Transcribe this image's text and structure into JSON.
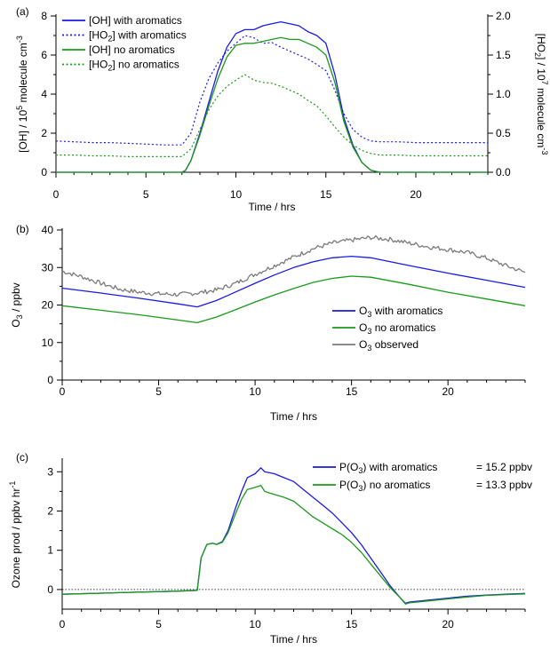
{
  "chart_data": [
    {
      "type": "line",
      "panel_label": "(a)",
      "xlabel": "Time / hrs",
      "xlim": [
        0,
        24
      ],
      "xticks": [
        "0",
        "5",
        "10",
        "15",
        "20"
      ],
      "ylabel_prefix": "[OH] / 10",
      "ylabel_exp": "5",
      "ylabel_suffix": " molecule cm",
      "ylabel_unit_exp": "-3",
      "ylim": [
        0,
        8
      ],
      "yticks": [
        "0",
        "2",
        "4",
        "6",
        "8"
      ],
      "y2label_prefix": "[HO",
      "y2label_sub": "2",
      "y2label_mid": "] / 10",
      "y2label_exp": "7",
      "y2label_suffix": " molecule cm",
      "y2label_unit_exp": "-3",
      "y2lim": [
        0,
        2.0
      ],
      "y2ticks": [
        "0.0",
        "0.5",
        "1.0",
        "1.5",
        "2.0"
      ],
      "legend_position": "top-left",
      "legend": [
        "[OH] with aromatics",
        "[HO2] with aromatics",
        "[OH] no aromatics",
        "[HO2] no aromatics"
      ],
      "legend_parts": [
        {
          "a": "[OH] with aromatics",
          "sub": "",
          "b": ""
        },
        {
          "a": "[HO",
          "sub": "2",
          "b": "] with aromatics"
        },
        {
          "a": "[OH] no aromatics",
          "sub": "",
          "b": ""
        },
        {
          "a": "[HO",
          "sub": "2",
          "b": "] no aromatics"
        }
      ],
      "series": [
        {
          "name": "[OH] with aromatics",
          "axis": "left",
          "color": "#1a1ae6",
          "dash": "solid",
          "x": [
            0,
            7,
            7.2,
            7.5,
            8,
            8.5,
            9,
            9.5,
            10,
            10.5,
            11,
            11.5,
            12,
            12.5,
            13,
            13.5,
            14,
            14.5,
            15,
            15.5,
            16,
            16.5,
            17,
            17.5,
            18,
            24
          ],
          "y": [
            0,
            0,
            0.1,
            0.6,
            2.0,
            3.6,
            5.2,
            6.4,
            7.1,
            7.3,
            7.3,
            7.5,
            7.6,
            7.7,
            7.6,
            7.5,
            7.2,
            7.0,
            6.6,
            5.0,
            2.8,
            1.4,
            0.5,
            0.1,
            0,
            0
          ]
        },
        {
          "name": "[HO2] with aromatics",
          "axis": "right",
          "color": "#1a1ae6",
          "dash": "dotted",
          "x": [
            0,
            1,
            2,
            3,
            4,
            5,
            6,
            7,
            7.5,
            8,
            8.5,
            9,
            9.5,
            10,
            10.5,
            11,
            11.5,
            12,
            12.5,
            13,
            13.5,
            14,
            14.5,
            15,
            15.5,
            16,
            16.5,
            17,
            17.5,
            18,
            19,
            20,
            21,
            22,
            23,
            24
          ],
          "y": [
            0.4,
            0.39,
            0.38,
            0.38,
            0.37,
            0.36,
            0.35,
            0.35,
            0.5,
            0.9,
            1.2,
            1.4,
            1.55,
            1.65,
            1.75,
            1.72,
            1.65,
            1.66,
            1.6,
            1.55,
            1.5,
            1.45,
            1.38,
            1.3,
            1.05,
            0.75,
            0.55,
            0.45,
            0.4,
            0.39,
            0.39,
            0.38,
            0.38,
            0.38,
            0.38,
            0.38
          ]
        },
        {
          "name": "[OH] no aromatics",
          "axis": "left",
          "color": "#1a9a1a",
          "dash": "solid",
          "x": [
            0,
            7,
            7.2,
            7.5,
            8,
            8.5,
            9,
            9.5,
            10,
            10.5,
            11,
            11.5,
            12,
            12.5,
            13,
            13.5,
            14,
            14.5,
            15,
            15.5,
            16,
            16.5,
            17,
            17.5,
            18,
            24
          ],
          "y": [
            0,
            0,
            0.1,
            0.6,
            1.9,
            3.4,
            4.8,
            5.9,
            6.5,
            6.6,
            6.6,
            6.7,
            6.8,
            6.9,
            6.8,
            6.8,
            6.6,
            6.4,
            6.0,
            4.6,
            2.6,
            1.3,
            0.5,
            0.1,
            0,
            0
          ]
        },
        {
          "name": "[HO2] no aromatics",
          "axis": "right",
          "color": "#1a9a1a",
          "dash": "dotted",
          "x": [
            0,
            1,
            2,
            3,
            4,
            5,
            6,
            7,
            7.5,
            8,
            8.5,
            9,
            9.5,
            10,
            10.5,
            11,
            11.5,
            12,
            12.5,
            13,
            13.5,
            14,
            14.5,
            15,
            15.5,
            16,
            16.5,
            17,
            17.5,
            18,
            19,
            20,
            21,
            22,
            23,
            24
          ],
          "y": [
            0.22,
            0.22,
            0.21,
            0.21,
            0.2,
            0.2,
            0.2,
            0.2,
            0.3,
            0.55,
            0.8,
            0.98,
            1.1,
            1.18,
            1.25,
            1.18,
            1.15,
            1.14,
            1.1,
            1.05,
            1.0,
            0.92,
            0.85,
            0.72,
            0.58,
            0.45,
            0.35,
            0.28,
            0.24,
            0.22,
            0.22,
            0.21,
            0.21,
            0.21,
            0.21,
            0.21
          ]
        }
      ]
    },
    {
      "type": "line",
      "panel_label": "(b)",
      "xlabel": "Time / hrs",
      "xlim": [
        0,
        24
      ],
      "xticks": [
        "0",
        "5",
        "10",
        "15",
        "20"
      ],
      "ylabel_prefix": "O",
      "ylabel_sub": "3",
      "ylabel_suffix": " / ppbv",
      "ylim": [
        0,
        40
      ],
      "yticks": [
        "0",
        "10",
        "20",
        "30",
        "40"
      ],
      "legend_position": "center-right",
      "legend": [
        "O3 with aromatics",
        "O3 no aromatics",
        "O3 observed"
      ],
      "legend_parts": [
        {
          "a": "O",
          "sub": "3",
          "b": " with aromatics"
        },
        {
          "a": "O",
          "sub": "3",
          "b": " no aromatics"
        },
        {
          "a": "O",
          "sub": "3",
          "b": " observed"
        }
      ],
      "series": [
        {
          "name": "O3 with aromatics",
          "color": "#1a1ae6",
          "dash": "solid",
          "x": [
            0,
            2,
            4,
            6,
            7,
            8,
            9,
            10,
            11,
            12,
            13,
            14,
            15,
            16,
            18,
            20,
            22,
            24
          ],
          "y": [
            24.5,
            23.2,
            21.8,
            20.3,
            19.5,
            21.2,
            23.5,
            25.8,
            28.0,
            30.0,
            31.5,
            32.6,
            33.0,
            32.6,
            30.5,
            28.5,
            26.6,
            24.7
          ]
        },
        {
          "name": "O3 no aromatics",
          "color": "#1a9a1a",
          "dash": "solid",
          "x": [
            0,
            2,
            4,
            6,
            7,
            8,
            9,
            10,
            11,
            12,
            13,
            14,
            15,
            16,
            18,
            20,
            22,
            24
          ],
          "y": [
            19.8,
            18.6,
            17.4,
            16.0,
            15.3,
            16.8,
            18.8,
            20.8,
            22.7,
            24.4,
            26.0,
            27.1,
            27.7,
            27.4,
            25.5,
            23.4,
            21.6,
            19.8
          ]
        },
        {
          "name": "O3 observed",
          "color": "#7a7a7a",
          "dash": "solid",
          "noisy": true,
          "x": [
            0,
            1,
            2,
            3,
            4,
            5,
            6,
            7,
            8,
            9,
            10,
            11,
            12,
            13,
            14,
            15,
            16,
            17,
            18,
            19,
            20,
            21,
            22,
            23,
            24
          ],
          "y": [
            29.0,
            27.6,
            25.8,
            24.2,
            23.4,
            23.0,
            22.8,
            23.2,
            24.0,
            25.8,
            28.2,
            30.5,
            32.8,
            35.0,
            36.5,
            37.3,
            38.0,
            37.5,
            36.5,
            35.5,
            34.8,
            34.0,
            32.5,
            30.5,
            28.7
          ]
        }
      ]
    },
    {
      "type": "line",
      "panel_label": "(c)",
      "xlabel": "Time / hrs",
      "xlim": [
        0,
        24
      ],
      "xticks": [
        "0",
        "5",
        "10",
        "15",
        "20"
      ],
      "ylabel_prefix": "Ozone prod / ppbv hr",
      "ylabel_exp": "-1",
      "ylim": [
        -0.5,
        3.3
      ],
      "yticks": [
        "0",
        "1",
        "2",
        "3"
      ],
      "zero_line": true,
      "legend_position": "top-right",
      "legend": [
        "P(O3) with aromatics = 15.2 ppbv",
        "P(O3) no aromatics = 13.3 ppbv"
      ],
      "legend_parts": [
        {
          "a": "P(O",
          "sub": "3",
          "b": ") with aromatics",
          "c": "= 15.2 ppbv"
        },
        {
          "a": "P(O",
          "sub": "3",
          "b": ") no aromatics",
          "c": "= 13.3 ppbv"
        }
      ],
      "series": [
        {
          "name": "P(O3) with aromatics = 15.2 ppbv",
          "color": "#1a1ae6",
          "dash": "solid",
          "x": [
            0,
            3,
            6,
            7,
            7.2,
            7.5,
            7.8,
            8.0,
            8.3,
            8.6,
            9.0,
            9.3,
            9.6,
            10.0,
            10.3,
            10.5,
            11.0,
            11.5,
            12.0,
            12.5,
            13.0,
            13.5,
            14.0,
            14.5,
            15.0,
            15.5,
            16.0,
            16.5,
            17.0,
            17.5,
            17.8,
            18.0,
            19,
            20,
            21,
            22,
            23,
            24
          ],
          "y": [
            -0.12,
            -0.08,
            -0.04,
            -0.02,
            0.8,
            1.15,
            1.18,
            1.15,
            1.22,
            1.5,
            2.1,
            2.5,
            2.85,
            2.95,
            3.1,
            3.0,
            2.95,
            2.85,
            2.75,
            2.55,
            2.35,
            2.15,
            1.95,
            1.7,
            1.45,
            1.15,
            0.8,
            0.45,
            0.1,
            -0.2,
            -0.35,
            -0.32,
            -0.27,
            -0.22,
            -0.17,
            -0.14,
            -0.12,
            -0.1
          ]
        },
        {
          "name": "P(O3) no aromatics = 13.3 ppbv",
          "color": "#1a9a1a",
          "dash": "solid",
          "x": [
            0,
            3,
            6,
            7,
            7.2,
            7.5,
            7.8,
            8.0,
            8.3,
            8.6,
            9.0,
            9.3,
            9.6,
            10.0,
            10.3,
            10.5,
            11.0,
            11.5,
            12.0,
            12.5,
            13.0,
            13.5,
            14.0,
            14.5,
            15.0,
            15.5,
            16.0,
            16.5,
            17.0,
            17.5,
            17.8,
            18.0,
            19,
            20,
            21,
            22,
            23,
            24
          ],
          "y": [
            -0.12,
            -0.08,
            -0.04,
            -0.02,
            0.8,
            1.15,
            1.18,
            1.15,
            1.2,
            1.45,
            1.95,
            2.3,
            2.55,
            2.6,
            2.65,
            2.5,
            2.42,
            2.35,
            2.25,
            2.05,
            1.85,
            1.7,
            1.55,
            1.4,
            1.2,
            0.95,
            0.65,
            0.35,
            0.05,
            -0.2,
            -0.37,
            -0.34,
            -0.29,
            -0.24,
            -0.19,
            -0.15,
            -0.13,
            -0.11
          ]
        }
      ]
    }
  ]
}
